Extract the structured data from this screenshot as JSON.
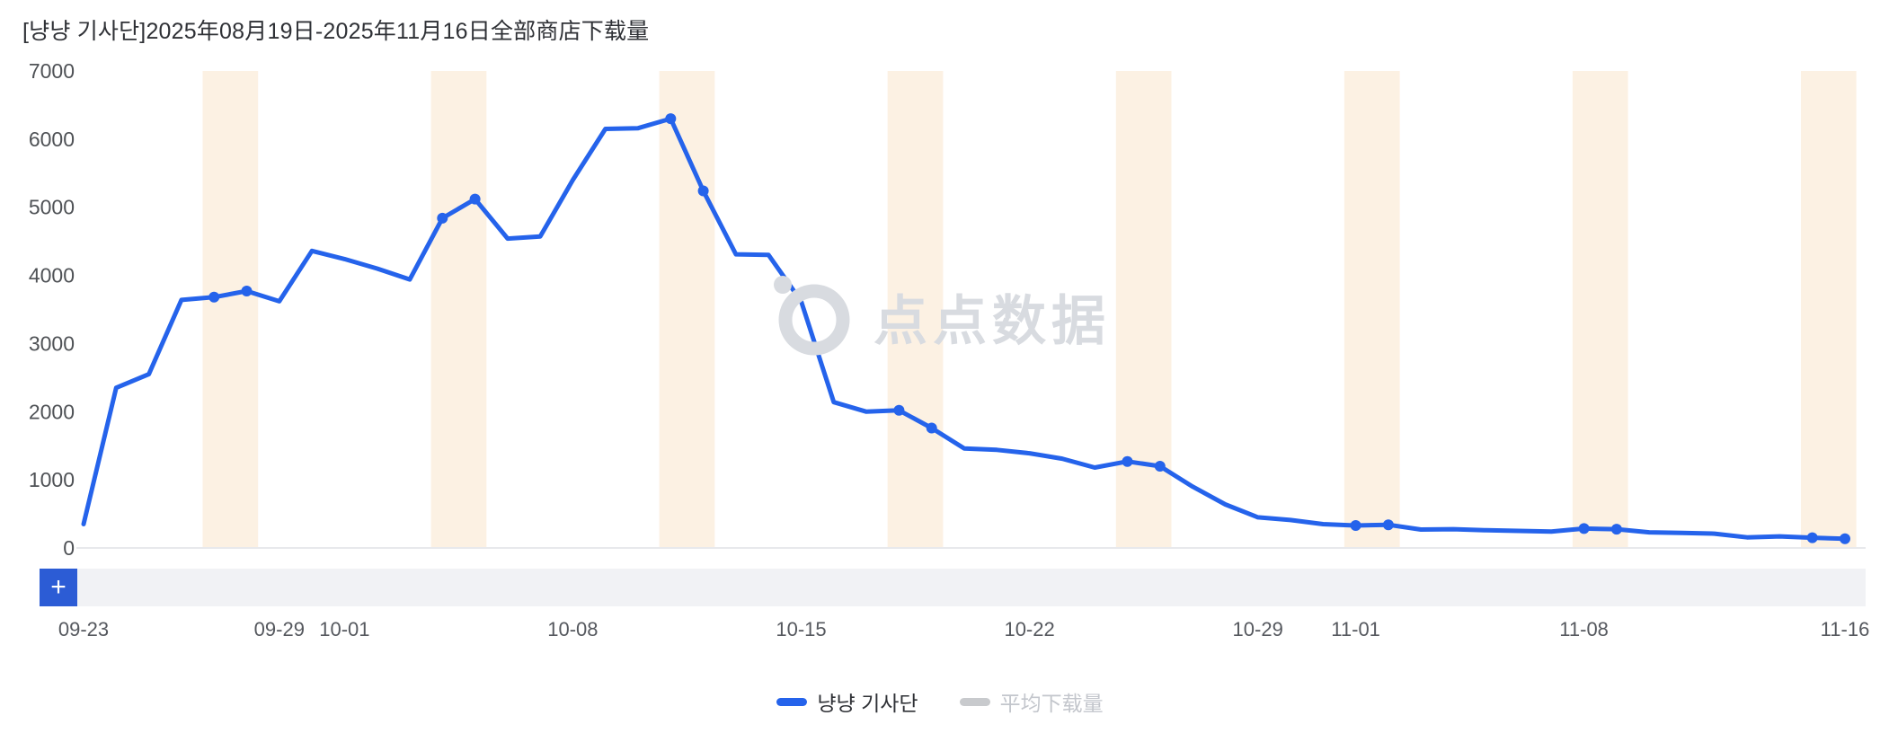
{
  "title": "[냥냥 기사단]2025年08月19日-2025年11月16日全部商店下载量",
  "watermark": {
    "text": "点点数据"
  },
  "controls": {
    "zoom_in_label": "+"
  },
  "legend": {
    "items": [
      {
        "label": "냥냥 기사단",
        "color": "#2563eb",
        "active": true
      },
      {
        "label": "平均下载量",
        "color": "#c8cacd",
        "active": false
      }
    ]
  },
  "chart_data": {
    "type": "line",
    "title": "[냥냥 기사단]2025年08月19日-2025年11月16日全部商店下载量",
    "xlabel": "",
    "ylabel": "",
    "ylim": [
      0,
      7000
    ],
    "yticks": [
      0,
      1000,
      2000,
      3000,
      4000,
      5000,
      6000,
      7000
    ],
    "grid": false,
    "legend_position": "bottom",
    "x": [
      "09-23",
      "09-24",
      "09-25",
      "09-26",
      "09-27",
      "09-28",
      "09-29",
      "09-30",
      "10-01",
      "10-02",
      "10-03",
      "10-04",
      "10-05",
      "10-06",
      "10-07",
      "10-08",
      "10-09",
      "10-10",
      "10-11",
      "10-12",
      "10-13",
      "10-14",
      "10-15",
      "10-16",
      "10-17",
      "10-18",
      "10-19",
      "10-20",
      "10-21",
      "10-22",
      "10-23",
      "10-24",
      "10-25",
      "10-26",
      "10-27",
      "10-28",
      "10-29",
      "10-30",
      "10-31",
      "11-01",
      "11-02",
      "11-03",
      "11-04",
      "11-05",
      "11-06",
      "11-07",
      "11-08",
      "11-09",
      "11-10",
      "11-11",
      "11-12",
      "11-13",
      "11-14",
      "11-15",
      "11-16"
    ],
    "xtick_labels": [
      "09-23",
      "09-29",
      "10-01",
      "10-08",
      "10-15",
      "10-22",
      "10-29",
      "11-01",
      "11-08",
      "11-16"
    ],
    "series": [
      {
        "name": "냥냥 기사단",
        "color": "#2563eb",
        "values": [
          350,
          2350,
          2550,
          3640,
          3680,
          3770,
          3620,
          4360,
          4240,
          4100,
          3940,
          4840,
          5120,
          4540,
          4570,
          5400,
          6150,
          6160,
          6300,
          5240,
          4310,
          4300,
          3620,
          2140,
          2000,
          2020,
          1760,
          1460,
          1440,
          1390,
          1310,
          1180,
          1270,
          1200,
          900,
          640,
          450,
          410,
          350,
          330,
          340,
          270,
          275,
          260,
          250,
          240,
          285,
          275,
          230,
          220,
          210,
          155,
          170,
          150,
          135
        ]
      }
    ],
    "marker_indices": [
      4,
      5,
      11,
      12,
      18,
      19,
      25,
      26,
      32,
      33,
      39,
      40,
      46,
      47,
      53,
      54
    ],
    "weekend_pairs": [
      [
        4,
        5
      ],
      [
        11,
        12
      ],
      [
        18,
        19
      ],
      [
        25,
        26
      ],
      [
        32,
        33
      ],
      [
        39,
        40
      ],
      [
        46,
        47
      ],
      [
        53,
        54
      ]
    ],
    "weekend_band_color": "#fcf1e3",
    "axis_color": "#e8e9ec",
    "tick_color": "#4f5256"
  }
}
